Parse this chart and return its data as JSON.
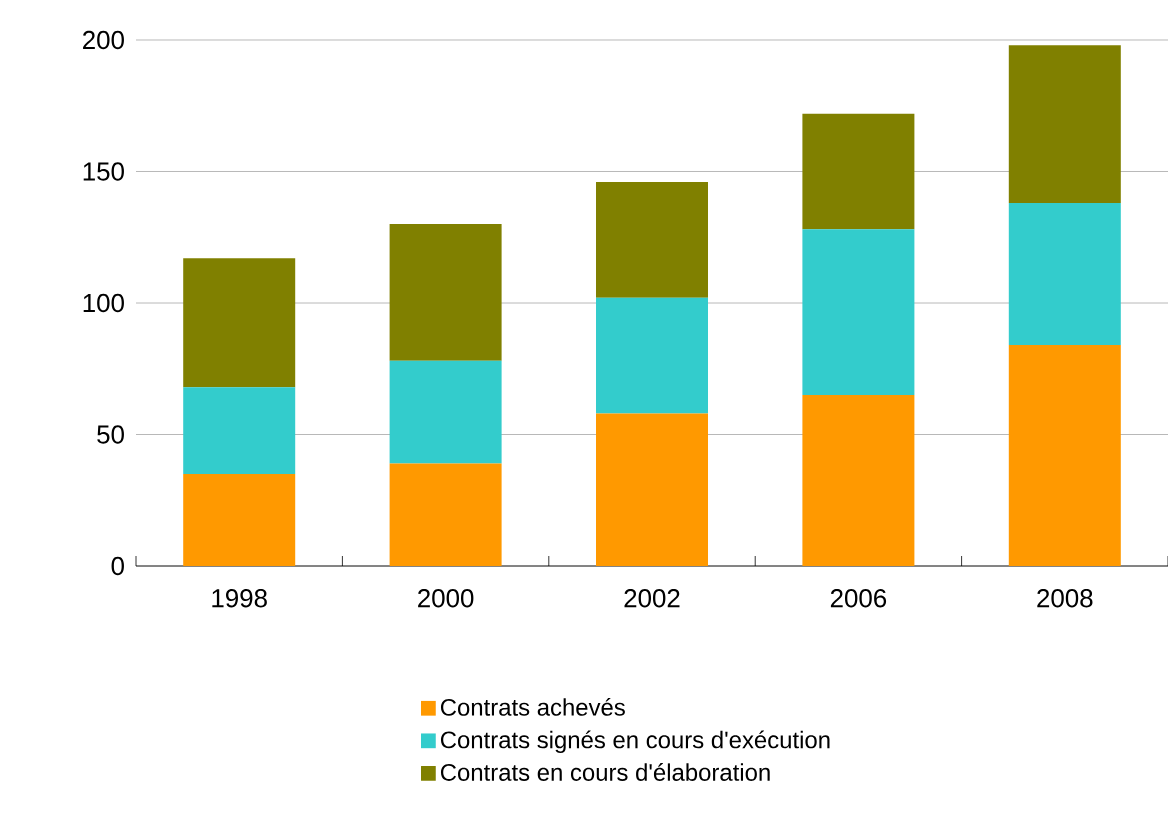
{
  "chart_data": {
    "type": "bar",
    "stacked": true,
    "categories": [
      "1998",
      "2000",
      "2002",
      "2006",
      "2008"
    ],
    "series": [
      {
        "name": "Contrats achevés",
        "color": "#ff9900",
        "values": [
          35,
          39,
          58,
          65,
          84
        ]
      },
      {
        "name": "Contrats signés en cours d'exécution",
        "color": "#33cccc",
        "values": [
          33,
          39,
          44,
          63,
          54
        ]
      },
      {
        "name": "Contrats en cours d'élaboration",
        "color": "#808000",
        "values": [
          49,
          52,
          44,
          44,
          60
        ]
      }
    ],
    "ylim": [
      0,
      200
    ],
    "yticks": [
      0,
      50,
      100,
      150,
      200
    ],
    "grid": "y",
    "legend": "bottom"
  }
}
